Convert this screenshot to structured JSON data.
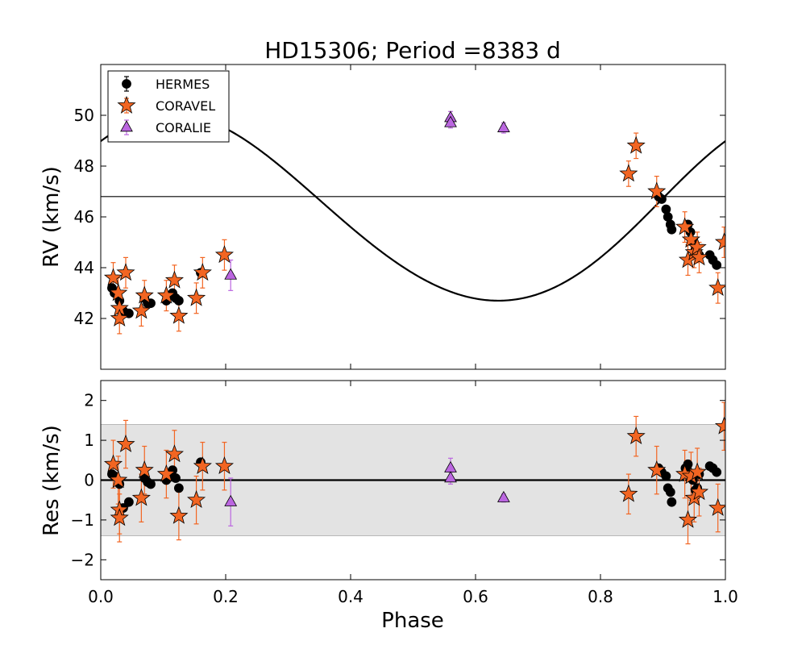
{
  "chart_data": {
    "type": "scatter",
    "title": "HD15306; Period =8383 d",
    "xlabel": "Phase",
    "xlim": [
      0.0,
      1.0
    ],
    "x_ticks": [
      "0.0",
      "0.2",
      "0.4",
      "0.6",
      "0.8",
      "1.0"
    ],
    "x_tick_values": [
      0.0,
      0.2,
      0.4,
      0.6,
      0.8,
      1.0
    ],
    "colors": {
      "hermes": "#000000",
      "coravel": "#f26522",
      "coralie": "#bb66e0",
      "band": "#e3e3e3"
    },
    "legend": {
      "placement": "top-left",
      "entries": [
        "HERMES",
        "CORAVEL",
        "CORALIE"
      ]
    },
    "top_panel": {
      "ylabel": "RV (km/s)",
      "ylim": [
        40.0,
        52.0
      ],
      "y_ticks": [
        "42",
        "44",
        "46",
        "48",
        "50"
      ],
      "y_tick_values": [
        42,
        44,
        46,
        48,
        50
      ],
      "systemic_velocity": 46.8,
      "orbit_model": {
        "gamma": 46.25,
        "K": 3.68,
        "e": 0.05,
        "omega_deg": 315.0,
        "T0_phase": 0.0
      },
      "series": [
        {
          "name": "HERMES",
          "marker": "circle",
          "points": [
            [
              0.018,
              43.2
            ],
            [
              0.022,
              43.0
            ],
            [
              0.03,
              42.7
            ],
            [
              0.036,
              42.3
            ],
            [
              0.045,
              42.2
            ],
            [
              0.07,
              42.8
            ],
            [
              0.075,
              42.6
            ],
            [
              0.08,
              42.6
            ],
            [
              0.105,
              42.7
            ],
            [
              0.112,
              42.9
            ],
            [
              0.115,
              43.0
            ],
            [
              0.12,
              42.8
            ],
            [
              0.125,
              42.7
            ],
            [
              0.16,
              43.8
            ],
            [
              0.893,
              46.8
            ],
            [
              0.898,
              46.7
            ],
            [
              0.905,
              46.3
            ],
            [
              0.908,
              46.0
            ],
            [
              0.912,
              45.7
            ],
            [
              0.914,
              45.5
            ],
            [
              0.936,
              45.6
            ],
            [
              0.94,
              45.7
            ],
            [
              0.944,
              45.4
            ],
            [
              0.948,
              45.0
            ],
            [
              0.952,
              44.7
            ],
            [
              0.955,
              44.5
            ],
            [
              0.958,
              44.5
            ],
            [
              0.975,
              44.5
            ],
            [
              0.98,
              44.3
            ],
            [
              0.986,
              44.1
            ]
          ]
        },
        {
          "name": "CORAVEL",
          "marker": "star",
          "points": [
            [
              0.02,
              43.6,
              0.6
            ],
            [
              0.028,
              43.0,
              0.6
            ],
            [
              0.03,
              42.4,
              0.6
            ],
            [
              0.03,
              42.0,
              0.6
            ],
            [
              0.04,
              43.8,
              0.6
            ],
            [
              0.065,
              42.3,
              0.6
            ],
            [
              0.07,
              42.9,
              0.6
            ],
            [
              0.105,
              42.9,
              0.6
            ],
            [
              0.118,
              43.5,
              0.6
            ],
            [
              0.125,
              42.1,
              0.6
            ],
            [
              0.153,
              42.8,
              0.6
            ],
            [
              0.163,
              43.8,
              0.6
            ],
            [
              0.198,
              44.5,
              0.6
            ],
            [
              0.845,
              47.7,
              0.5
            ],
            [
              0.857,
              48.8,
              0.5
            ],
            [
              0.89,
              47.0,
              0.6
            ],
            [
              0.935,
              45.6,
              0.6
            ],
            [
              0.94,
              44.3,
              0.6
            ],
            [
              0.945,
              45.1,
              0.6
            ],
            [
              0.95,
              44.6,
              0.6
            ],
            [
              0.955,
              44.8,
              0.6
            ],
            [
              0.958,
              44.4,
              0.6
            ],
            [
              0.988,
              43.2,
              0.6
            ],
            [
              0.998,
              45.0,
              0.6
            ]
          ]
        },
        {
          "name": "CORALIE",
          "marker": "triangle",
          "points": [
            [
              0.208,
              43.7,
              0.6
            ],
            [
              0.56,
              49.9,
              0.25
            ],
            [
              0.56,
              49.7,
              0.2
            ],
            [
              0.645,
              49.5,
              0.2
            ]
          ]
        }
      ]
    },
    "bottom_panel": {
      "ylabel": "Res (km/s)",
      "ylim": [
        -2.5,
        2.5
      ],
      "y_ticks": [
        "−2",
        "−1",
        "0",
        "1",
        "2"
      ],
      "y_tick_values": [
        -2,
        -1,
        0,
        1,
        2
      ],
      "band": [
        -1.4,
        1.4
      ],
      "series": [
        {
          "name": "HERMES",
          "marker": "circle",
          "points": [
            [
              0.018,
              0.15
            ],
            [
              0.022,
              0.1
            ],
            [
              0.03,
              -0.1
            ],
            [
              0.036,
              -0.7
            ],
            [
              0.045,
              -0.55
            ],
            [
              0.07,
              0.05
            ],
            [
              0.075,
              -0.05
            ],
            [
              0.08,
              -0.1
            ],
            [
              0.105,
              0.0
            ],
            [
              0.112,
              0.15
            ],
            [
              0.115,
              0.25
            ],
            [
              0.12,
              0.05
            ],
            [
              0.125,
              -0.2
            ],
            [
              0.16,
              0.45
            ],
            [
              0.893,
              0.3
            ],
            [
              0.898,
              0.2
            ],
            [
              0.905,
              0.1
            ],
            [
              0.908,
              -0.2
            ],
            [
              0.912,
              -0.3
            ],
            [
              0.914,
              -0.55
            ],
            [
              0.936,
              0.3
            ],
            [
              0.94,
              0.4
            ],
            [
              0.944,
              0.1
            ],
            [
              0.948,
              0.0
            ],
            [
              0.952,
              -0.25
            ],
            [
              0.955,
              -0.2
            ],
            [
              0.958,
              0.15
            ],
            [
              0.975,
              0.35
            ],
            [
              0.98,
              0.3
            ],
            [
              0.986,
              0.2
            ]
          ]
        },
        {
          "name": "CORAVEL",
          "marker": "star",
          "points": [
            [
              0.02,
              0.4,
              0.6
            ],
            [
              0.028,
              0.0,
              0.6
            ],
            [
              0.03,
              -0.75,
              0.6
            ],
            [
              0.03,
              -0.95,
              0.6
            ],
            [
              0.04,
              0.9,
              0.6
            ],
            [
              0.065,
              -0.45,
              0.6
            ],
            [
              0.07,
              0.25,
              0.6
            ],
            [
              0.105,
              0.15,
              0.6
            ],
            [
              0.118,
              0.65,
              0.6
            ],
            [
              0.125,
              -0.9,
              0.6
            ],
            [
              0.153,
              -0.5,
              0.6
            ],
            [
              0.163,
              0.35,
              0.6
            ],
            [
              0.198,
              0.35,
              0.6
            ],
            [
              0.845,
              -0.35,
              0.5
            ],
            [
              0.857,
              1.1,
              0.5
            ],
            [
              0.89,
              0.25,
              0.6
            ],
            [
              0.935,
              0.15,
              0.6
            ],
            [
              0.94,
              -1.0,
              0.6
            ],
            [
              0.945,
              0.1,
              0.6
            ],
            [
              0.95,
              -0.45,
              0.6
            ],
            [
              0.955,
              0.2,
              0.6
            ],
            [
              0.958,
              -0.3,
              0.6
            ],
            [
              0.988,
              -0.7,
              0.6
            ],
            [
              0.998,
              1.35,
              0.6
            ]
          ]
        },
        {
          "name": "CORALIE",
          "marker": "triangle",
          "points": [
            [
              0.208,
              -0.55,
              0.6
            ],
            [
              0.56,
              0.3,
              0.25
            ],
            [
              0.56,
              0.05,
              0.15
            ],
            [
              0.645,
              -0.45,
              0.1
            ]
          ]
        }
      ]
    }
  }
}
